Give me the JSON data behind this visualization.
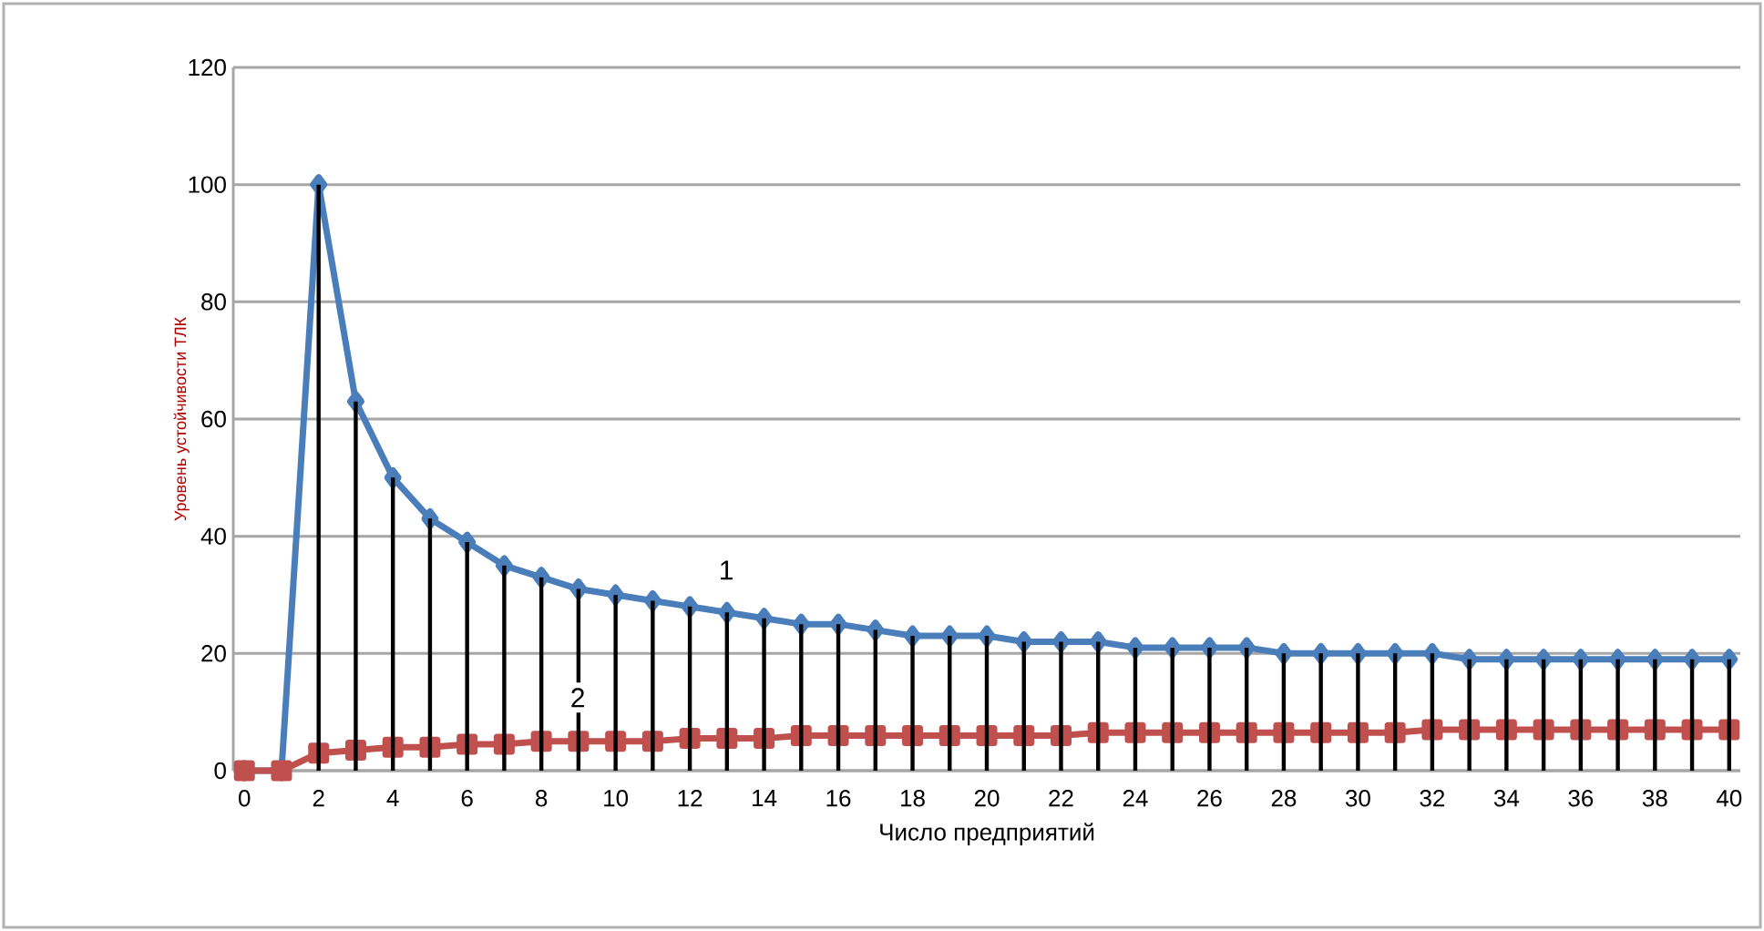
{
  "chart_data": {
    "type": "line",
    "xlabel": "Число предприятий",
    "ylabel": "Уровень устойчивости ТЛК",
    "categories": [
      "0",
      null,
      "2",
      null,
      "4",
      null,
      "6",
      null,
      "8",
      null,
      "10",
      null,
      "12",
      null,
      "14",
      null,
      "16",
      null,
      "18",
      null,
      "20",
      null,
      "22",
      null,
      "24",
      null,
      "26",
      null,
      "28",
      null,
      "30",
      null,
      "32",
      null,
      "34",
      null,
      "36",
      null,
      "38",
      null,
      "40"
    ],
    "ylim": [
      0,
      120
    ],
    "yticks": [
      0,
      20,
      40,
      60,
      80,
      100,
      120
    ],
    "grid": "y",
    "series": [
      {
        "name": "1",
        "color": "#4a7ebb",
        "marker": "diamond",
        "values": [
          0,
          0,
          100,
          63,
          50,
          43,
          39,
          35,
          33,
          31,
          30,
          29,
          28,
          27,
          26,
          25,
          25,
          24,
          23,
          23,
          23,
          22,
          22,
          22,
          21,
          21,
          21,
          21,
          20,
          20,
          20,
          20,
          20,
          19,
          19,
          19,
          19,
          19,
          19,
          19,
          19
        ]
      },
      {
        "name": "2",
        "color": "#c0504d",
        "marker": "square",
        "values": [
          0,
          0,
          3,
          3.5,
          4,
          4,
          4.5,
          4.5,
          5,
          5,
          5,
          5,
          5.5,
          5.5,
          5.5,
          6,
          6,
          6,
          6,
          6,
          6,
          6,
          6,
          6.5,
          6.5,
          6.5,
          6.5,
          6.5,
          6.5,
          6.5,
          6.5,
          6.5,
          7,
          7,
          7,
          7,
          7,
          7,
          7,
          7,
          7
        ]
      },
      {
        "type": "bar",
        "color": "#000000",
        "values": [
          null,
          null,
          100,
          63,
          50,
          43,
          39,
          35,
          33,
          31,
          30,
          29,
          28,
          27,
          26,
          25,
          25,
          24,
          23,
          23,
          23,
          22,
          22,
          22,
          21,
          21,
          21,
          21,
          20,
          20,
          20,
          20,
          20,
          19,
          19,
          19,
          19,
          19,
          19,
          19,
          19
        ]
      }
    ]
  }
}
